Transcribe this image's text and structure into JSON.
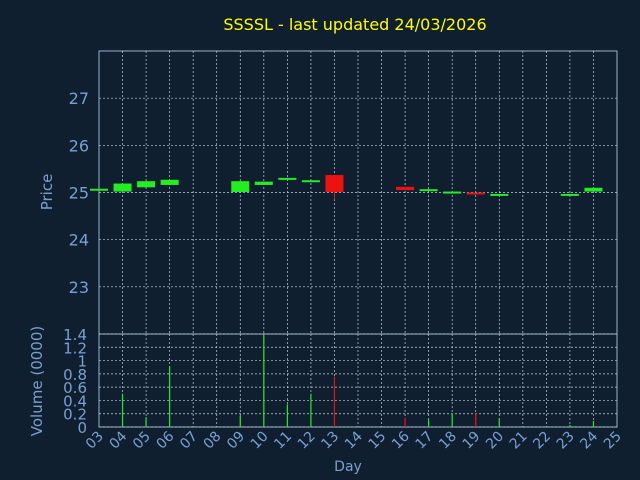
{
  "colors": {
    "background": "#0f1f30",
    "frame": "#9ab0cc",
    "grid": "#c8d0dc",
    "text": "#7aa0d0",
    "title": "#ffff00",
    "up": "#22ee22",
    "down": "#ee1111"
  },
  "chart_data": [
    {
      "type": "candlestick",
      "title": "SSSSL - last updated 24/03/2026",
      "ylabel": "Price",
      "ylim": [
        22.0,
        28.0
      ],
      "yticks": [
        23,
        24,
        25,
        26,
        27
      ],
      "grid": true,
      "candles": [
        {
          "day": "03",
          "open": 25.06,
          "close": 25.08,
          "high": 25.08,
          "low": 25.06
        },
        {
          "day": "04",
          "open": 25.02,
          "close": 25.19,
          "high": 25.19,
          "low": 25.02
        },
        {
          "day": "05",
          "open": 25.11,
          "close": 25.24,
          "high": 25.24,
          "low": 25.11
        },
        {
          "day": "06",
          "open": 25.16,
          "close": 25.27,
          "high": 25.27,
          "low": 25.16
        },
        {
          "day": "09",
          "open": 25.01,
          "close": 25.24,
          "high": 25.24,
          "low": 25.01
        },
        {
          "day": "10",
          "open": 25.16,
          "close": 25.23,
          "high": 25.23,
          "low": 25.16
        },
        {
          "day": "11",
          "open": 25.28,
          "close": 25.31,
          "high": 25.31,
          "low": 25.28
        },
        {
          "day": "12",
          "open": 25.23,
          "close": 25.26,
          "high": 25.26,
          "low": 25.23
        },
        {
          "day": "13",
          "open": 25.37,
          "close": 25.01,
          "high": 25.37,
          "low": 24.85
        },
        {
          "day": "16",
          "open": 25.12,
          "close": 25.05,
          "high": 25.12,
          "low": 25.05
        },
        {
          "day": "17",
          "open": 25.05,
          "close": 25.07,
          "high": 25.07,
          "low": 25.05
        },
        {
          "day": "18",
          "open": 25.0,
          "close": 25.02,
          "high": 25.02,
          "low": 25.0
        },
        {
          "day": "19",
          "open": 25.0,
          "close": 24.98,
          "high": 25.0,
          "low": 24.98
        },
        {
          "day": "20",
          "open": 24.95,
          "close": 24.97,
          "high": 24.97,
          "low": 24.95
        },
        {
          "day": "23",
          "open": 24.95,
          "close": 24.97,
          "high": 24.97,
          "low": 24.95
        },
        {
          "day": "24",
          "open": 25.02,
          "close": 25.1,
          "high": 25.1,
          "low": 25.02
        }
      ]
    },
    {
      "type": "bar",
      "xlabel": "Day",
      "ylabel": "Volume (0000)",
      "ylim": [
        0,
        1.4
      ],
      "yticks": [
        "0",
        "0.2",
        "0.4",
        "0.6",
        "0.8",
        "1",
        "1.2",
        "1.4"
      ],
      "categories": [
        "03",
        "04",
        "05",
        "06",
        "07",
        "08",
        "09",
        "10",
        "11",
        "12",
        "13",
        "14",
        "15",
        "16",
        "17",
        "18",
        "19",
        "20",
        "21",
        "22",
        "23",
        "24",
        "25"
      ],
      "bars": [
        {
          "day": "03",
          "value": 0.02,
          "dir": "up"
        },
        {
          "day": "04",
          "value": 0.5,
          "dir": "up"
        },
        {
          "day": "05",
          "value": 0.15,
          "dir": "up"
        },
        {
          "day": "06",
          "value": 0.92,
          "dir": "up"
        },
        {
          "day": "09",
          "value": 0.17,
          "dir": "up"
        },
        {
          "day": "10",
          "value": 1.38,
          "dir": "up"
        },
        {
          "day": "11",
          "value": 0.34,
          "dir": "up"
        },
        {
          "day": "12",
          "value": 0.5,
          "dir": "up"
        },
        {
          "day": "13",
          "value": 0.76,
          "dir": "down"
        },
        {
          "day": "16",
          "value": 0.14,
          "dir": "down"
        },
        {
          "day": "17",
          "value": 0.11,
          "dir": "up"
        },
        {
          "day": "18",
          "value": 0.2,
          "dir": "up"
        },
        {
          "day": "19",
          "value": 0.2,
          "dir": "down"
        },
        {
          "day": "20",
          "value": 0.13,
          "dir": "up"
        },
        {
          "day": "23",
          "value": 0.03,
          "dir": "up"
        },
        {
          "day": "24",
          "value": 0.09,
          "dir": "up"
        }
      ]
    }
  ]
}
